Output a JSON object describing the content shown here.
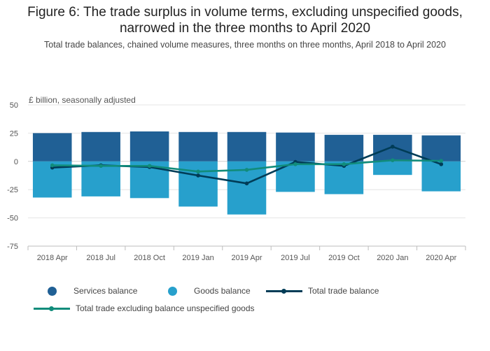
{
  "chart_data": {
    "type": "bar",
    "title": "Figure 6: The trade surplus in volume terms, excluding unspecified goods, narrowed in the three months to April 2020",
    "subtitle": "Total trade balances, chained volume measures, three months on three months, April 2018 to April 2020",
    "ylabel": "£ billion, seasonally adjusted",
    "ylim": [
      -75,
      50
    ],
    "yticks": [
      50,
      25,
      0,
      -25,
      -50,
      -75
    ],
    "categories": [
      "2018 Apr",
      "2018 Jul",
      "2018 Oct",
      "2019 Jan",
      "2019 Apr",
      "2019 Jul",
      "2019 Oct",
      "2020 Jan",
      "2020 Apr"
    ],
    "series": [
      {
        "name": "Services balance",
        "kind": "bar",
        "color": "#206095",
        "values": [
          25.0,
          26.0,
          26.5,
          26.0,
          26.0,
          25.5,
          23.5,
          23.5,
          23.0
        ]
      },
      {
        "name": "Goods balance",
        "kind": "bar",
        "color": "#27a0cc",
        "values": [
          -32.0,
          -31.0,
          -32.5,
          -40.0,
          -47.0,
          -27.0,
          -29.0,
          -12.0,
          -26.5
        ]
      },
      {
        "name": "Total trade balance",
        "kind": "line",
        "color": "#003c57",
        "values": [
          -5.5,
          -3.5,
          -5.0,
          -12.5,
          -19.5,
          -0.5,
          -4.0,
          13.0,
          -2.5
        ]
      },
      {
        "name": "Total trade excluding balance unspecified goods",
        "kind": "line",
        "color": "#118c7b",
        "values": [
          -3.5,
          -4.0,
          -4.0,
          -9.0,
          -7.5,
          -2.5,
          -2.5,
          1.0,
          0.5
        ]
      }
    ],
    "legend_position": "bottom"
  }
}
